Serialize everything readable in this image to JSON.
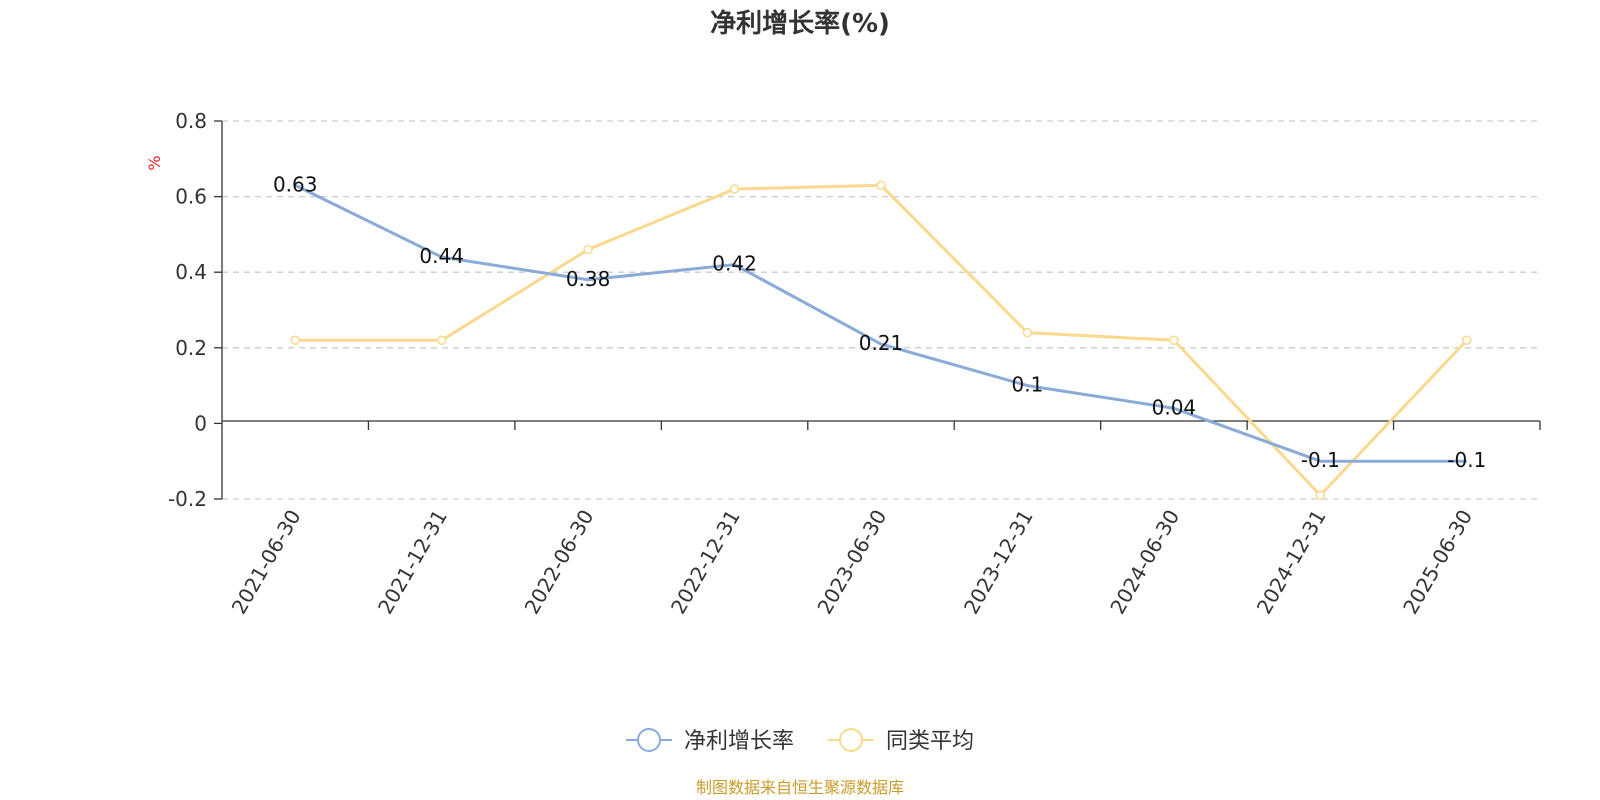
{
  "colors": {
    "series1": "#8aaad8",
    "series2": "#fad98e",
    "axis": "#333333",
    "grid": "#cccccc",
    "unit": "#e8262a",
    "source": "#c89b2a"
  },
  "chart_data": {
    "type": "line",
    "title": "净利增长率(%)",
    "ylabel": "%",
    "xlabel": "",
    "ylim": [
      -0.2,
      0.8
    ],
    "yticks": [
      -0.2,
      0,
      0.2,
      0.4,
      0.6,
      0.8
    ],
    "y_tick_labels": [
      "-0.2",
      "0",
      "0.2",
      "0.4",
      "0.6",
      "0.8"
    ],
    "grid": true,
    "legend_position": "bottom-center",
    "categories": [
      "2021-06-30",
      "2021-12-31",
      "2022-06-30",
      "2022-12-31",
      "2023-06-30",
      "2023-12-31",
      "2024-06-30",
      "2024-12-31",
      "2025-06-30"
    ],
    "series": [
      {
        "name": "净利增长率",
        "values": [
          0.63,
          0.44,
          0.38,
          0.42,
          0.21,
          0.1,
          0.04,
          -0.1,
          -0.1
        ],
        "labels": [
          "0.63",
          "0.44",
          "0.38",
          "0.42",
          "0.21",
          "0.1",
          "0.04",
          "-0.1",
          "-0.1"
        ]
      },
      {
        "name": "同类平均",
        "values": [
          0.22,
          0.22,
          0.46,
          0.62,
          0.63,
          0.24,
          0.22,
          -0.19,
          0.22
        ]
      }
    ]
  },
  "source_text": "制图数据来自恒生聚源数据库"
}
